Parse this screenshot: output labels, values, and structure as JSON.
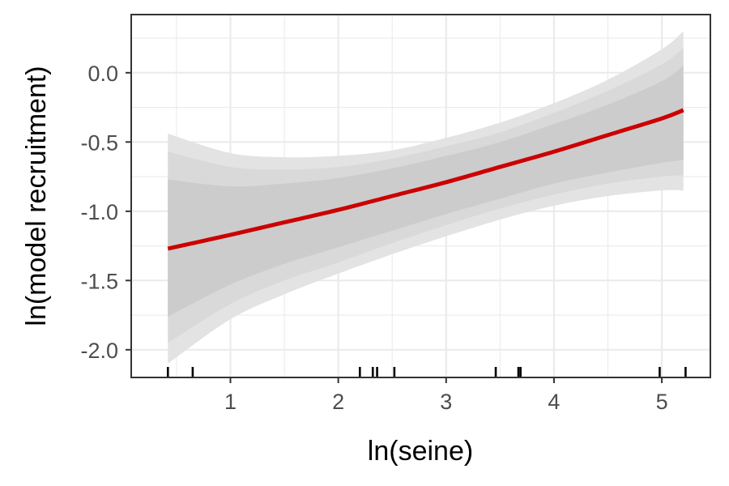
{
  "chart_data": {
    "type": "line",
    "title": "",
    "xlabel": "ln(seine)",
    "ylabel": "ln(model recruitment)",
    "xlim": [
      0.08,
      5.45
    ],
    "ylim": [
      -2.2,
      0.42
    ],
    "grid": true,
    "x_ticks": [
      1,
      2,
      3,
      4,
      5
    ],
    "x_tick_labels": [
      "1",
      "2",
      "3",
      "4",
      "5"
    ],
    "y_ticks": [
      0.0,
      -0.5,
      -1.0,
      -1.5,
      -2.0
    ],
    "y_tick_labels": [
      "0.0",
      "-0.5",
      "-1.0",
      "-1.5",
      "-2.0"
    ],
    "colors": {
      "fit_line": "#cc0000",
      "band_outer": "#e3e3e3",
      "band_middle": "#d9d9d9",
      "band_inner": "#cccccc",
      "rug": "#000000",
      "grid": "#ebebeb",
      "border": "#333333"
    },
    "fit": {
      "x": [
        0.42,
        1.0,
        1.5,
        2.0,
        2.5,
        3.0,
        3.5,
        4.0,
        4.5,
        5.0,
        5.2
      ],
      "y": [
        -1.27,
        -1.17,
        -1.08,
        -0.99,
        -0.89,
        -0.79,
        -0.68,
        -0.57,
        -0.45,
        -0.33,
        -0.27
      ]
    },
    "bands": [
      {
        "level": "outer",
        "x": [
          0.42,
          1.0,
          1.5,
          2.0,
          2.5,
          3.0,
          3.5,
          4.0,
          4.5,
          5.0,
          5.2
        ],
        "lower": [
          -2.1,
          -1.78,
          -1.6,
          -1.45,
          -1.31,
          -1.18,
          -1.06,
          -0.96,
          -0.89,
          -0.85,
          -0.85
        ],
        "upper": [
          -0.44,
          -0.58,
          -0.61,
          -0.6,
          -0.56,
          -0.47,
          -0.36,
          -0.22,
          -0.05,
          0.17,
          0.3
        ]
      },
      {
        "level": "middle",
        "x": [
          0.42,
          1.0,
          1.5,
          2.0,
          2.5,
          3.0,
          3.5,
          4.0,
          4.5,
          5.0,
          5.2
        ],
        "lower": [
          -1.95,
          -1.67,
          -1.5,
          -1.37,
          -1.23,
          -1.1,
          -0.98,
          -0.88,
          -0.8,
          -0.75,
          -0.74
        ],
        "upper": [
          -0.57,
          -0.68,
          -0.7,
          -0.68,
          -0.62,
          -0.53,
          -0.43,
          -0.29,
          -0.13,
          0.06,
          0.18
        ]
      },
      {
        "level": "inner",
        "x": [
          0.42,
          1.0,
          1.5,
          2.0,
          2.5,
          3.0,
          3.5,
          4.0,
          4.5,
          5.0,
          5.2
        ],
        "lower": [
          -1.76,
          -1.53,
          -1.38,
          -1.26,
          -1.14,
          -1.02,
          -0.91,
          -0.8,
          -0.72,
          -0.65,
          -0.63
        ],
        "upper": [
          -0.77,
          -0.82,
          -0.8,
          -0.76,
          -0.69,
          -0.6,
          -0.5,
          -0.37,
          -0.23,
          -0.06,
          0.05
        ]
      }
    ],
    "rug_x": [
      0.42,
      0.65,
      2.2,
      2.32,
      2.36,
      2.52,
      3.46,
      3.67,
      3.69,
      4.98,
      5.22
    ]
  }
}
